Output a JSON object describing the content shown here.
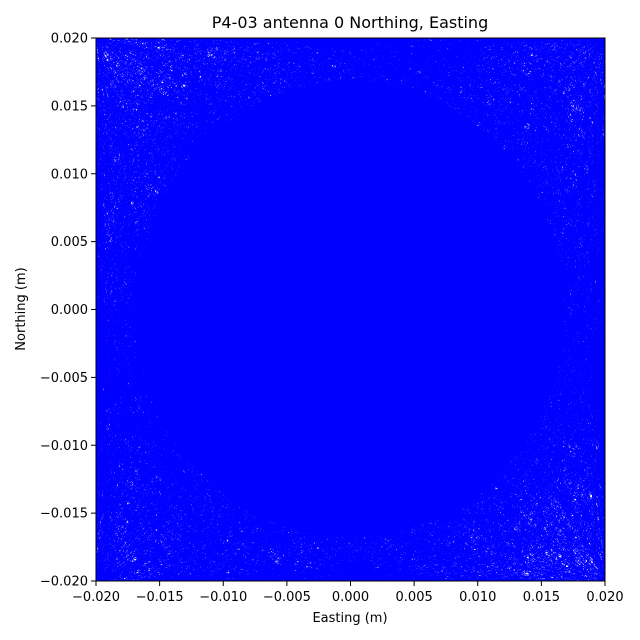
{
  "chart_data": {
    "type": "line",
    "title": "P4-03 antenna 0 Northing, Easting",
    "xlabel": "Easting (m)",
    "ylabel": "Northing (m)",
    "xlim": [
      -0.02,
      0.02
    ],
    "ylim": [
      -0.02,
      0.02
    ],
    "x_ticks": [
      "−0.020",
      "−0.015",
      "−0.010",
      "−0.005",
      "0.000",
      "0.005",
      "0.010",
      "0.015",
      "0.020"
    ],
    "y_ticks": [
      "−0.020",
      "−0.015",
      "−0.010",
      "−0.005",
      "0.000",
      "0.005",
      "0.010",
      "0.015",
      "0.020"
    ],
    "x_tick_values": [
      -0.02,
      -0.015,
      -0.01,
      -0.005,
      0.0,
      0.005,
      0.01,
      0.015,
      0.02
    ],
    "y_tick_values": [
      -0.02,
      -0.015,
      -0.01,
      -0.005,
      0.0,
      0.005,
      0.01,
      0.015,
      0.02
    ],
    "grid": false,
    "legend": "none",
    "series": [
      {
        "color": "#0000ff",
        "description_of_distribution": "dense random-walk trace filling entire axes, densest at center",
        "sample_points": [
          [
            -0.0023,
            0.0041
          ],
          [
            0.0152,
            -0.0107
          ],
          [
            -0.0181,
            0.0166
          ],
          [
            0.0034,
            -0.0019
          ],
          [
            -0.0095,
            -0.0142
          ],
          [
            0.0118,
            0.0079
          ],
          [
            -0.0047,
            0.0122
          ],
          [
            0.0191,
            0.0013
          ],
          [
            -0.0166,
            -0.0038
          ],
          [
            0.0006,
            -0.0171
          ],
          [
            0.0087,
            0.0184
          ],
          [
            -0.0139,
            0.0057
          ],
          [
            0.0059,
            -0.0063
          ],
          [
            -0.0011,
            0.0009
          ],
          [
            0.0173,
            -0.0188
          ],
          [
            -0.0194,
            -0.0176
          ],
          [
            0.0025,
            0.0152
          ],
          [
            -0.0068,
            -0.0081
          ],
          [
            0.0141,
            0.0036
          ],
          [
            -0.0029,
            -0.0048
          ]
        ]
      }
    ]
  }
}
